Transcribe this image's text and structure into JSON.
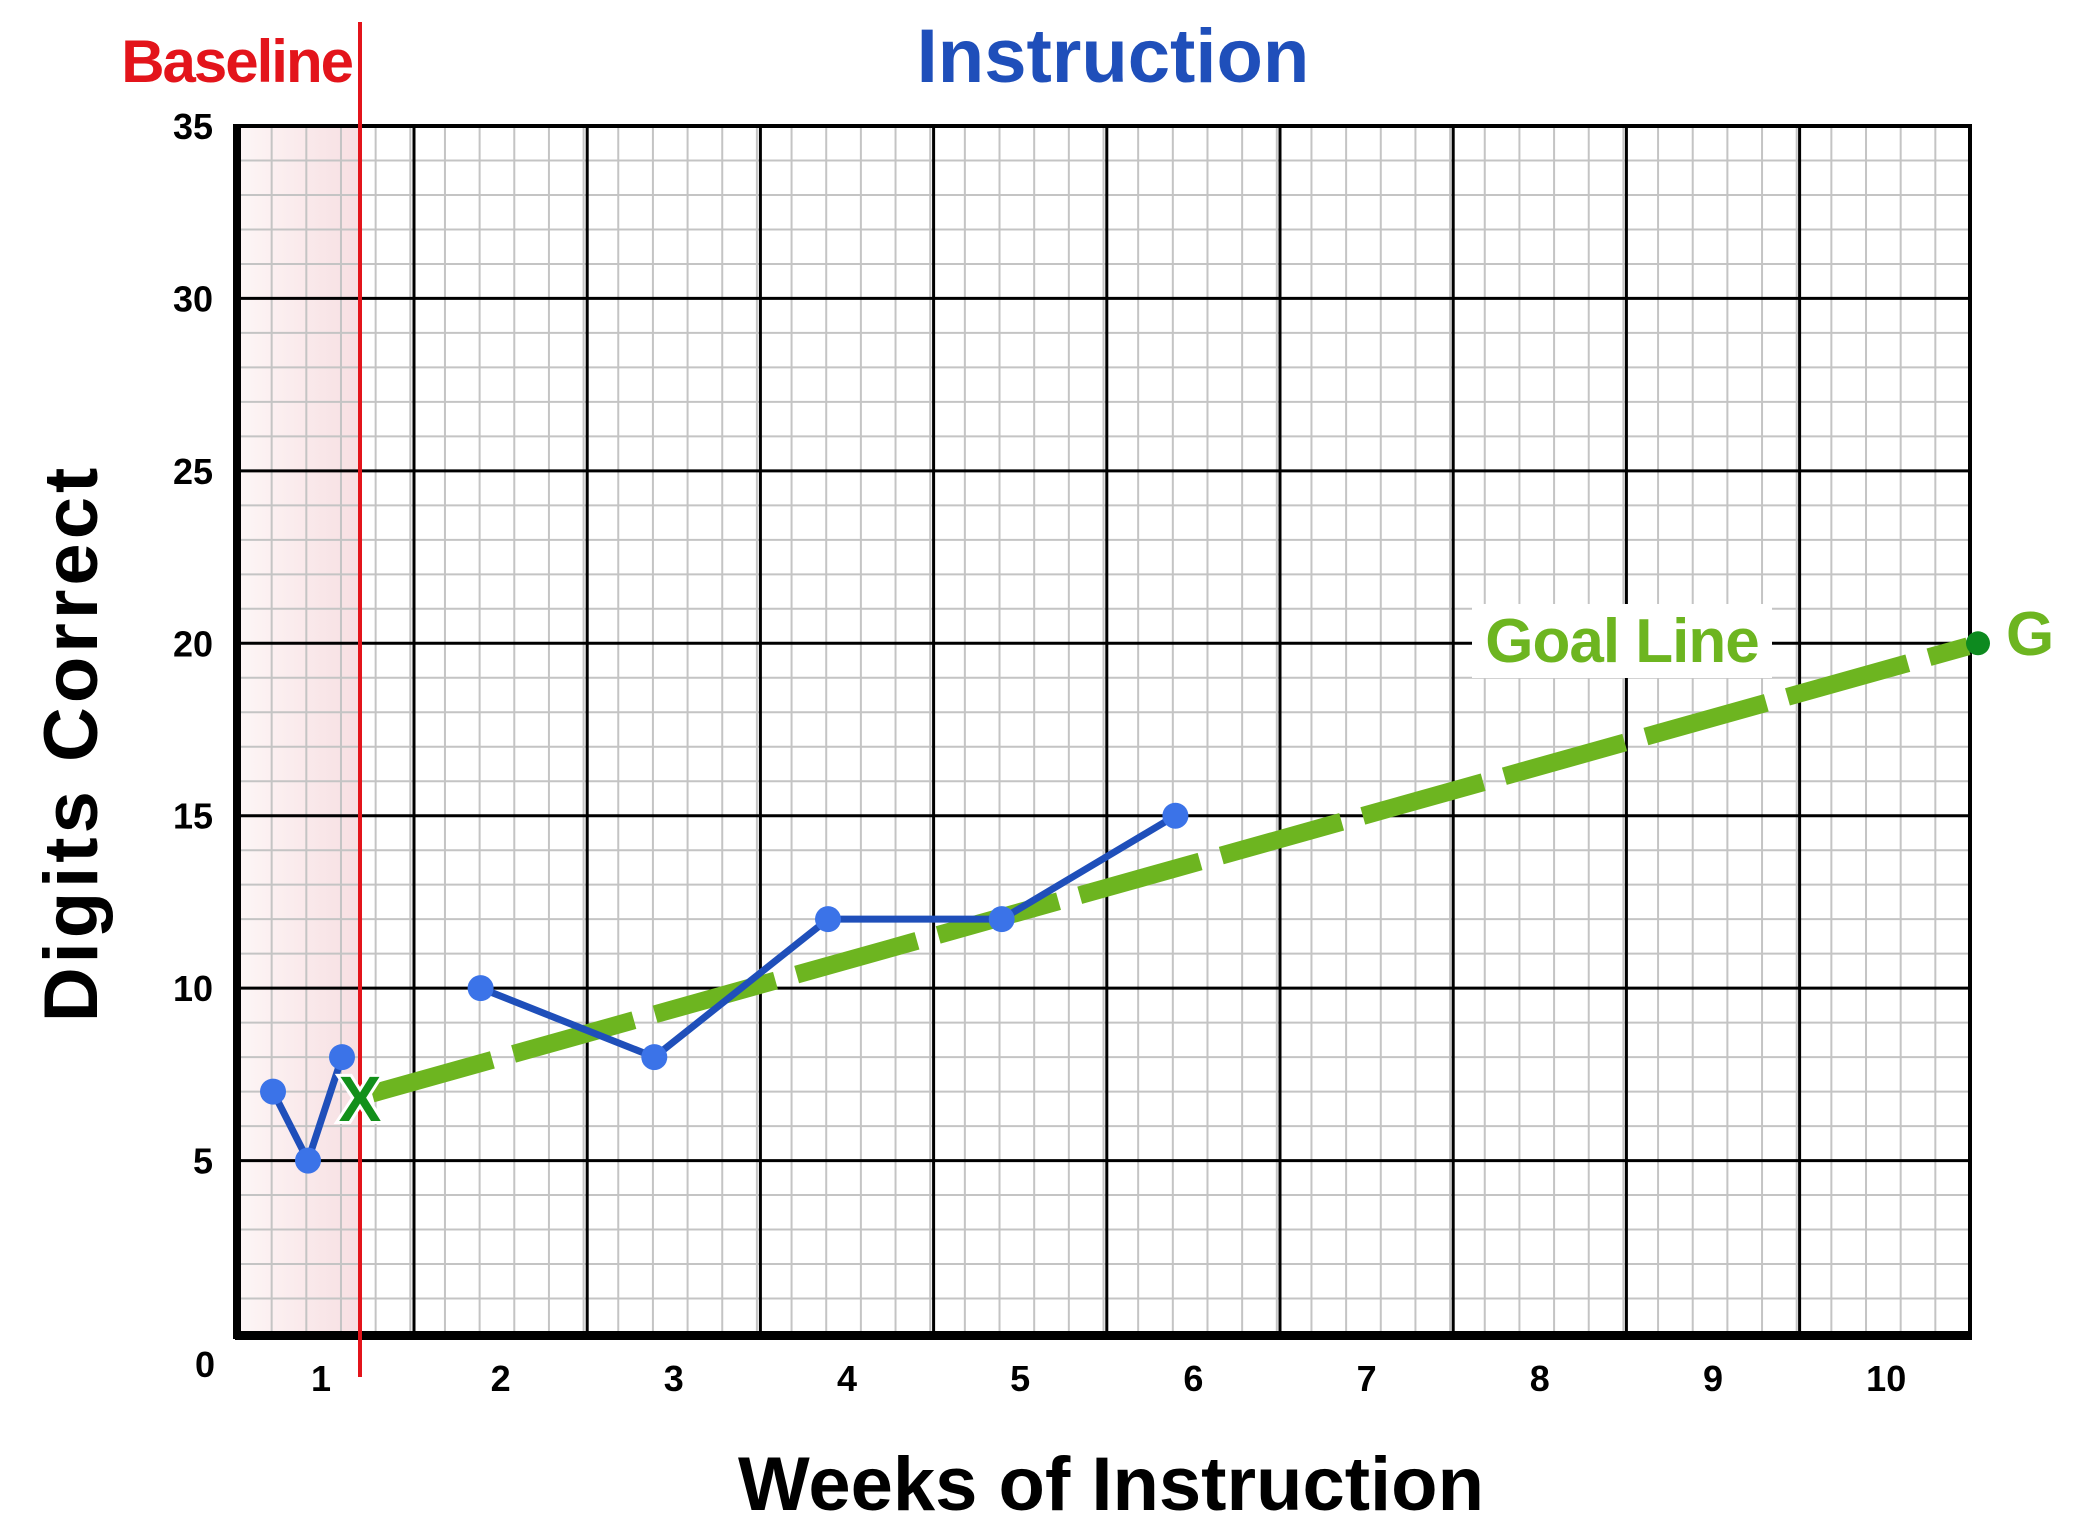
{
  "chart_data": {
    "type": "line",
    "title": "",
    "phase_labels": {
      "baseline": "Baseline",
      "instruction": "Instruction"
    },
    "xlabel": "Weeks of Instruction",
    "ylabel": "Digits Correct",
    "ylim": [
      0,
      35
    ],
    "y_ticks": [
      0,
      5,
      10,
      15,
      20,
      25,
      30,
      35
    ],
    "x_ticks": [
      1,
      2,
      3,
      4,
      5,
      6,
      7,
      8,
      9,
      10
    ],
    "grid": true,
    "minor_grid_step_y": 1,
    "minor_grid_divisions_per_week": 5,
    "series": [
      {
        "name": "Baseline",
        "phase": "baseline",
        "points": [
          {
            "week": 0.6,
            "value": 7
          },
          {
            "week": 0.8,
            "value": 5
          },
          {
            "week": 1.0,
            "value": 8
          }
        ]
      },
      {
        "name": "Instruction",
        "phase": "instruction",
        "points": [
          {
            "week": 2,
            "value": 10
          },
          {
            "week": 3,
            "value": 8
          },
          {
            "week": 4,
            "value": 12
          },
          {
            "week": 5,
            "value": 12
          },
          {
            "week": 6,
            "value": 15
          }
        ]
      }
    ],
    "goal_line": {
      "label": "Goal Line",
      "start_marker": "X",
      "start": {
        "week": 1.15,
        "value": 7
      },
      "end_marker": "G",
      "end": {
        "week": 10.65,
        "value": 20
      },
      "style": "dashed"
    },
    "annotations": [
      "Baseline",
      "Instruction",
      "Goal Line",
      "X",
      "G"
    ],
    "colors": {
      "baseline_label": "#e3141b",
      "phase_divider": "#e3141b",
      "baseline_shading": "#f9dfe2",
      "instruction_label": "#1f4fba",
      "data_line": "#1f4fba",
      "data_point": "#3b73e8",
      "goal_line": "#6db520",
      "goal_endpoint": "#0d8a1f",
      "x_marker": "#12901a",
      "major_grid": "#000000",
      "minor_grid": "#c4c4c4"
    },
    "legend": null
  }
}
